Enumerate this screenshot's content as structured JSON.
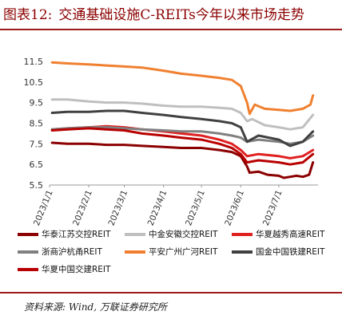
{
  "header": {
    "figure_no": "图表12:",
    "title": "交通基础设施C-REITs今年以来市场走势"
  },
  "source": "资料来源: Wind, 万联证券研究所",
  "chart_data": {
    "type": "line",
    "title": "交通基础设施C-REITs今年以来市场走势",
    "x_tick_labels": [
      "2023/1/1",
      "2023/2/1",
      "2023/3/1",
      "2023/4/1",
      "2023/5/1",
      "2023/6/1",
      "2023/7/1"
    ],
    "xlim": [
      "2023/1/1",
      "2023/8/1"
    ],
    "ylim": [
      5.5,
      12.0
    ],
    "y_ticks": [
      "5.5",
      "6.5",
      "7.5",
      "8.5",
      "9.5",
      "10.5",
      "11.5"
    ],
    "grid": false,
    "legend_position": "bottom",
    "series": [
      {
        "name": "华泰江苏交控REIT",
        "color": "#8b0000",
        "points": [
          [
            "2023/1/3",
            7.55
          ],
          [
            "2023/1/15",
            7.5
          ],
          [
            "2023/2/1",
            7.5
          ],
          [
            "2023/2/15",
            7.45
          ],
          [
            "2023/3/1",
            7.45
          ],
          [
            "2023/3/15",
            7.4
          ],
          [
            "2023/4/1",
            7.35
          ],
          [
            "2023/4/15",
            7.3
          ],
          [
            "2023/5/1",
            7.3
          ],
          [
            "2023/5/15",
            7.2
          ],
          [
            "2023/5/25",
            7.1
          ],
          [
            "2023/6/1",
            6.9
          ],
          [
            "2023/6/6",
            6.4
          ],
          [
            "2023/6/8",
            6.1
          ],
          [
            "2023/6/15",
            6.15
          ],
          [
            "2023/6/22",
            6.0
          ],
          [
            "2023/7/1",
            5.95
          ],
          [
            "2023/7/5",
            5.85
          ],
          [
            "2023/7/10",
            5.9
          ],
          [
            "2023/7/15",
            5.95
          ],
          [
            "2023/7/20",
            5.9
          ],
          [
            "2023/7/25",
            6.0
          ],
          [
            "2023/7/28",
            6.6
          ]
        ]
      },
      {
        "name": "中金安徽交控REIT",
        "color": "#bfbfbf",
        "points": [
          [
            "2023/1/3",
            9.65
          ],
          [
            "2023/1/15",
            9.65
          ],
          [
            "2023/2/1",
            9.55
          ],
          [
            "2023/2/15",
            9.5
          ],
          [
            "2023/3/1",
            9.5
          ],
          [
            "2023/3/15",
            9.45
          ],
          [
            "2023/4/1",
            9.35
          ],
          [
            "2023/4/15",
            9.3
          ],
          [
            "2023/5/1",
            9.3
          ],
          [
            "2023/5/15",
            9.25
          ],
          [
            "2023/5/25",
            9.2
          ],
          [
            "2023/6/1",
            9.0
          ],
          [
            "2023/6/6",
            8.6
          ],
          [
            "2023/6/10",
            8.7
          ],
          [
            "2023/6/20",
            8.4
          ],
          [
            "2023/7/1",
            8.3
          ],
          [
            "2023/7/10",
            8.2
          ],
          [
            "2023/7/20",
            8.3
          ],
          [
            "2023/7/28",
            8.9
          ]
        ]
      },
      {
        "name": "华夏越秀高速REIT",
        "color": "#e02020",
        "points": [
          [
            "2023/1/3",
            8.2
          ],
          [
            "2023/1/15",
            8.25
          ],
          [
            "2023/2/1",
            8.3
          ],
          [
            "2023/2/15",
            8.35
          ],
          [
            "2023/3/1",
            8.3
          ],
          [
            "2023/3/15",
            8.2
          ],
          [
            "2023/4/1",
            8.1
          ],
          [
            "2023/4/15",
            8.0
          ],
          [
            "2023/5/1",
            7.9
          ],
          [
            "2023/5/15",
            7.7
          ],
          [
            "2023/5/25",
            7.5
          ],
          [
            "2023/6/1",
            7.2
          ],
          [
            "2023/6/6",
            6.9
          ],
          [
            "2023/6/15",
            7.0
          ],
          [
            "2023/7/1",
            6.9
          ],
          [
            "2023/7/10",
            6.8
          ],
          [
            "2023/7/20",
            6.9
          ],
          [
            "2023/7/28",
            7.2
          ]
        ]
      },
      {
        "name": "浙商沪杭甬REIT",
        "color": "#808080",
        "points": [
          [
            "2023/1/3",
            8.2
          ],
          [
            "2023/1/15",
            8.25
          ],
          [
            "2023/2/1",
            8.3
          ],
          [
            "2023/2/15",
            8.3
          ],
          [
            "2023/3/1",
            8.25
          ],
          [
            "2023/3/15",
            8.2
          ],
          [
            "2023/4/1",
            8.15
          ],
          [
            "2023/4/15",
            8.1
          ],
          [
            "2023/5/1",
            8.1
          ],
          [
            "2023/5/15",
            8.0
          ],
          [
            "2023/5/25",
            7.9
          ],
          [
            "2023/6/1",
            7.8
          ],
          [
            "2023/6/6",
            7.6
          ],
          [
            "2023/6/15",
            7.7
          ],
          [
            "2023/7/1",
            7.6
          ],
          [
            "2023/7/10",
            7.5
          ],
          [
            "2023/7/20",
            7.6
          ],
          [
            "2023/7/28",
            7.9
          ]
        ]
      },
      {
        "name": "平安广州广河REIT",
        "color": "#f08030",
        "points": [
          [
            "2023/1/3",
            11.45
          ],
          [
            "2023/1/15",
            11.4
          ],
          [
            "2023/2/1",
            11.35
          ],
          [
            "2023/2/15",
            11.3
          ],
          [
            "2023/3/1",
            11.25
          ],
          [
            "2023/3/15",
            11.2
          ],
          [
            "2023/4/1",
            11.05
          ],
          [
            "2023/4/15",
            10.9
          ],
          [
            "2023/5/1",
            10.8
          ],
          [
            "2023/5/15",
            10.7
          ],
          [
            "2023/5/25",
            10.6
          ],
          [
            "2023/6/1",
            10.3
          ],
          [
            "2023/6/6",
            9.5
          ],
          [
            "2023/6/8",
            8.95
          ],
          [
            "2023/6/12",
            9.4
          ],
          [
            "2023/6/20",
            9.2
          ],
          [
            "2023/7/1",
            9.15
          ],
          [
            "2023/7/10",
            9.1
          ],
          [
            "2023/7/20",
            9.2
          ],
          [
            "2023/7/26",
            9.4
          ],
          [
            "2023/7/28",
            9.85
          ]
        ]
      },
      {
        "name": "国金中国铁建REIT",
        "color": "#404040",
        "points": [
          [
            "2023/1/3",
            9.0
          ],
          [
            "2023/1/15",
            9.05
          ],
          [
            "2023/2/1",
            9.05
          ],
          [
            "2023/2/15",
            9.1
          ],
          [
            "2023/3/1",
            9.1
          ],
          [
            "2023/3/15",
            9.0
          ],
          [
            "2023/4/1",
            8.9
          ],
          [
            "2023/4/15",
            8.8
          ],
          [
            "2023/5/1",
            8.7
          ],
          [
            "2023/5/15",
            8.6
          ],
          [
            "2023/5/25",
            8.5
          ],
          [
            "2023/6/1",
            8.3
          ],
          [
            "2023/6/6",
            7.6
          ],
          [
            "2023/6/15",
            7.9
          ],
          [
            "2023/7/1",
            7.7
          ],
          [
            "2023/7/10",
            7.4
          ],
          [
            "2023/7/20",
            7.6
          ],
          [
            "2023/7/28",
            8.1
          ]
        ]
      },
      {
        "name": "华夏中国交建REIT",
        "color": "#b80000",
        "points": [
          [
            "2023/1/3",
            8.15
          ],
          [
            "2023/1/15",
            8.2
          ],
          [
            "2023/2/1",
            8.25
          ],
          [
            "2023/2/15",
            8.2
          ],
          [
            "2023/3/1",
            8.15
          ],
          [
            "2023/3/15",
            8.0
          ],
          [
            "2023/4/1",
            7.9
          ],
          [
            "2023/4/15",
            7.8
          ],
          [
            "2023/5/1",
            7.7
          ],
          [
            "2023/5/15",
            7.5
          ],
          [
            "2023/5/25",
            7.3
          ],
          [
            "2023/6/1",
            7.0
          ],
          [
            "2023/6/6",
            6.6
          ],
          [
            "2023/6/15",
            6.7
          ],
          [
            "2023/7/1",
            6.6
          ],
          [
            "2023/7/10",
            6.5
          ],
          [
            "2023/7/20",
            6.6
          ],
          [
            "2023/7/28",
            7.0
          ]
        ]
      }
    ]
  }
}
